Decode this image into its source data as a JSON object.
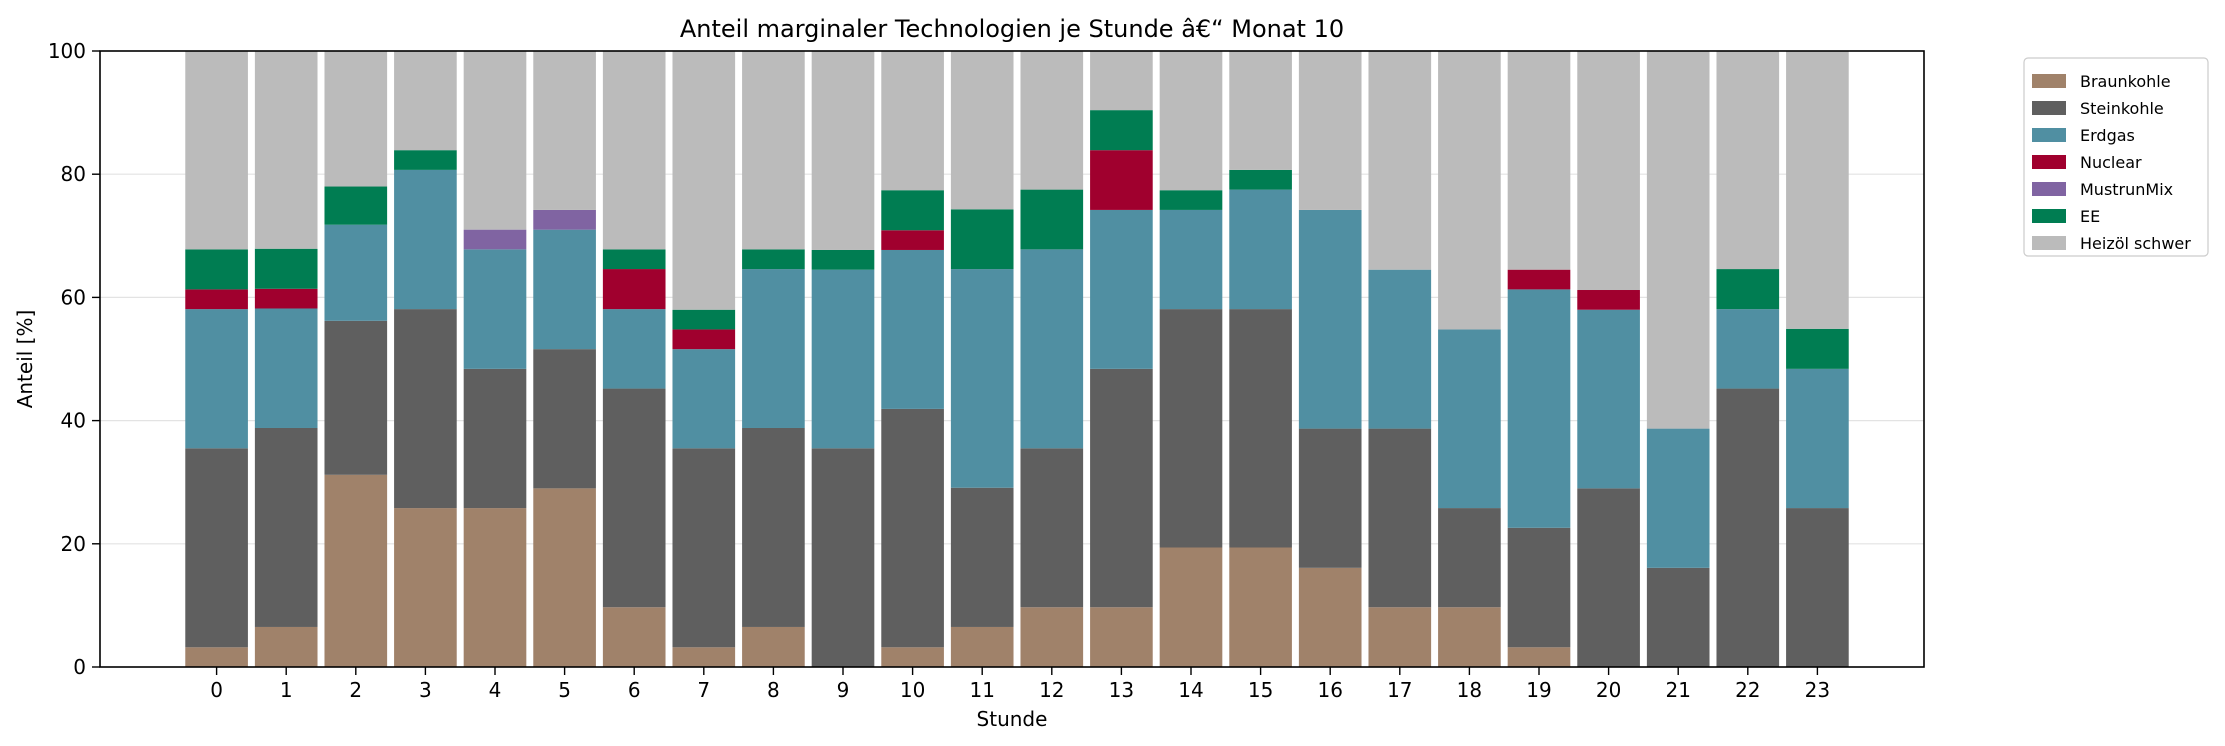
{
  "chart_data": {
    "type": "bar",
    "stacked": true,
    "title": "Anteil marginaler Technologien je Stunde â€“ Monat 10",
    "xlabel": "Stunde",
    "ylabel": "Anteil [%]",
    "ylim": [
      0,
      100
    ],
    "yticks": [
      0,
      20,
      40,
      60,
      80,
      100
    ],
    "grid": "horizontal",
    "legend_position": "outside-top-right",
    "categories": [
      "0",
      "1",
      "2",
      "3",
      "4",
      "5",
      "6",
      "7",
      "8",
      "9",
      "10",
      "11",
      "12",
      "13",
      "14",
      "15",
      "16",
      "17",
      "18",
      "19",
      "20",
      "21",
      "22",
      "23"
    ],
    "series": [
      {
        "name": "Braunkohle",
        "color": "#a0826a",
        "values": [
          3.2,
          6.5,
          31.2,
          25.8,
          25.8,
          29.0,
          9.7,
          3.2,
          6.5,
          0,
          3.2,
          6.5,
          9.7,
          9.7,
          19.4,
          19.4,
          16.1,
          9.7,
          9.7,
          3.2,
          0,
          0,
          0,
          0
        ]
      },
      {
        "name": "Steinkohle",
        "color": "#5f5f5f",
        "values": [
          32.3,
          32.3,
          25.0,
          32.3,
          22.6,
          22.6,
          35.5,
          32.3,
          32.3,
          35.5,
          38.7,
          22.6,
          25.8,
          38.7,
          38.7,
          38.7,
          22.6,
          29.0,
          16.1,
          19.4,
          29.0,
          16.1,
          45.2,
          25.8
        ]
      },
      {
        "name": "Erdgas",
        "color": "#508fa2",
        "values": [
          22.6,
          19.4,
          15.6,
          22.6,
          19.4,
          19.4,
          12.9,
          16.1,
          25.8,
          29.0,
          25.8,
          35.5,
          32.3,
          25.8,
          16.1,
          19.4,
          35.5,
          25.8,
          29.0,
          38.7,
          29.0,
          22.6,
          12.9,
          22.6
        ]
      },
      {
        "name": "Nuclear",
        "color": "#a0002e",
        "values": [
          3.2,
          3.2,
          0,
          0,
          0,
          0,
          6.5,
          3.2,
          0,
          0,
          3.2,
          0,
          0,
          9.7,
          0,
          0,
          0,
          0,
          0,
          3.2,
          3.2,
          0,
          0,
          0
        ]
      },
      {
        "name": "MustrunMix",
        "color": "#8064a2",
        "values": [
          0,
          0,
          0,
          0,
          3.2,
          3.2,
          0,
          0,
          0,
          0,
          0,
          0,
          0,
          0,
          0,
          0,
          0,
          0,
          0,
          0,
          0,
          0,
          0,
          0
        ]
      },
      {
        "name": "EE",
        "color": "#007d52",
        "values": [
          6.5,
          6.5,
          6.2,
          3.2,
          0,
          0,
          3.2,
          3.2,
          3.2,
          3.2,
          6.5,
          9.7,
          9.7,
          6.5,
          3.2,
          3.2,
          0,
          0,
          0,
          0,
          0,
          0,
          6.5,
          6.5
        ]
      },
      {
        "name": "Heizöl schwer",
        "color": "#bbbbbb",
        "values": [
          32.2,
          32.1,
          22.0,
          16.1,
          29.0,
          25.8,
          32.2,
          42.0,
          32.2,
          32.3,
          22.6,
          25.7,
          22.5,
          9.6,
          22.6,
          19.3,
          25.8,
          35.5,
          45.2,
          35.5,
          38.8,
          61.3,
          35.4,
          45.1
        ]
      }
    ]
  }
}
